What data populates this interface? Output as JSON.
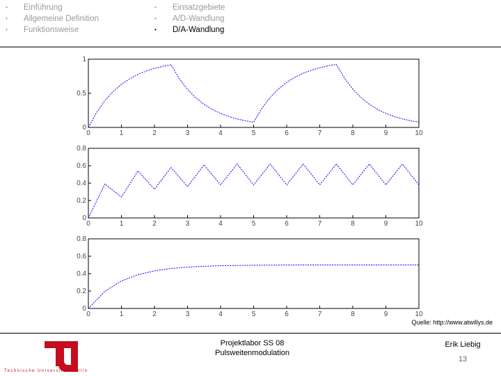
{
  "nav": {
    "left": [
      "Einführung",
      "Allgemeine Definition",
      "Funktionsweise"
    ],
    "right": [
      "Einsatzgebiete",
      "A/D-Wandlung",
      "D/A-Wandlung"
    ]
  },
  "source": "Quelle: http://www.atwillys.de",
  "footer": {
    "university": "Technische Universität Berlin",
    "course": "Projektlabor SS 08",
    "topic": "Pulsweitenmodulation",
    "author": "Erik Liebig",
    "page": "13"
  },
  "chart_data": [
    {
      "type": "line",
      "color": "#0000ff",
      "x": [
        0,
        0.25,
        0.5,
        0.75,
        1,
        1.25,
        1.5,
        1.75,
        2,
        2.25,
        2.5,
        2.75,
        3,
        3.25,
        3.5,
        3.75,
        4,
        4.25,
        4.5,
        4.75,
        5,
        5.25,
        5.5,
        5.75,
        6,
        6.25,
        6.5,
        6.75,
        7,
        7.25,
        7.5,
        7.75,
        8,
        8.25,
        8.5,
        8.75,
        9,
        9.25,
        9.5,
        9.75,
        10
      ],
      "values": [
        0,
        0.221,
        0.393,
        0.528,
        0.632,
        0.713,
        0.777,
        0.826,
        0.865,
        0.895,
        0.918,
        0.715,
        0.557,
        0.434,
        0.338,
        0.263,
        0.205,
        0.16,
        0.124,
        0.097,
        0.075,
        0.28,
        0.439,
        0.563,
        0.66,
        0.735,
        0.794,
        0.839,
        0.875,
        0.903,
        0.924,
        0.72,
        0.561,
        0.437,
        0.34,
        0.265,
        0.206,
        0.161,
        0.125,
        0.097,
        0.076
      ],
      "xlim": [
        0,
        10
      ],
      "xticks": [
        0,
        1,
        2,
        3,
        4,
        5,
        6,
        7,
        8,
        9,
        10
      ],
      "ylim": [
        0,
        1
      ],
      "yticks": [
        0,
        0.5,
        1
      ]
    },
    {
      "type": "line",
      "color": "#0000ff",
      "x": [
        0,
        0.5,
        1,
        1.5,
        2,
        2.5,
        3,
        3.5,
        4,
        4.5,
        5,
        5.5,
        6,
        6.5,
        7,
        7.5,
        8,
        8.5,
        9,
        9.5,
        10
      ],
      "values": [
        0,
        0.39,
        0.24,
        0.54,
        0.33,
        0.58,
        0.36,
        0.61,
        0.38,
        0.62,
        0.38,
        0.62,
        0.38,
        0.62,
        0.38,
        0.62,
        0.38,
        0.62,
        0.38,
        0.62,
        0.38
      ],
      "xlim": [
        0,
        10
      ],
      "xticks": [
        0,
        1,
        2,
        3,
        4,
        5,
        6,
        7,
        8,
        9,
        10
      ],
      "ylim": [
        0,
        0.8
      ],
      "yticks": [
        0,
        0.2,
        0.4,
        0.6,
        0.8
      ]
    },
    {
      "type": "line",
      "color": "#0000ff",
      "x": [
        0,
        0.5,
        1,
        1.5,
        2,
        2.5,
        3,
        3.5,
        4,
        4.5,
        5,
        5.5,
        6,
        6.5,
        7,
        7.5,
        8,
        8.5,
        9,
        9.5,
        10
      ],
      "values": [
        0,
        0.197,
        0.316,
        0.388,
        0.432,
        0.459,
        0.475,
        0.485,
        0.491,
        0.494,
        0.497,
        0.498,
        0.499,
        0.5,
        0.5,
        0.5,
        0.5,
        0.5,
        0.5,
        0.5,
        0.5
      ],
      "xlim": [
        0,
        10
      ],
      "xticks": [
        0,
        1,
        2,
        3,
        4,
        5,
        6,
        7,
        8,
        9,
        10
      ],
      "ylim": [
        0,
        0.8
      ],
      "yticks": [
        0,
        0.2,
        0.4,
        0.6,
        0.8
      ]
    }
  ]
}
